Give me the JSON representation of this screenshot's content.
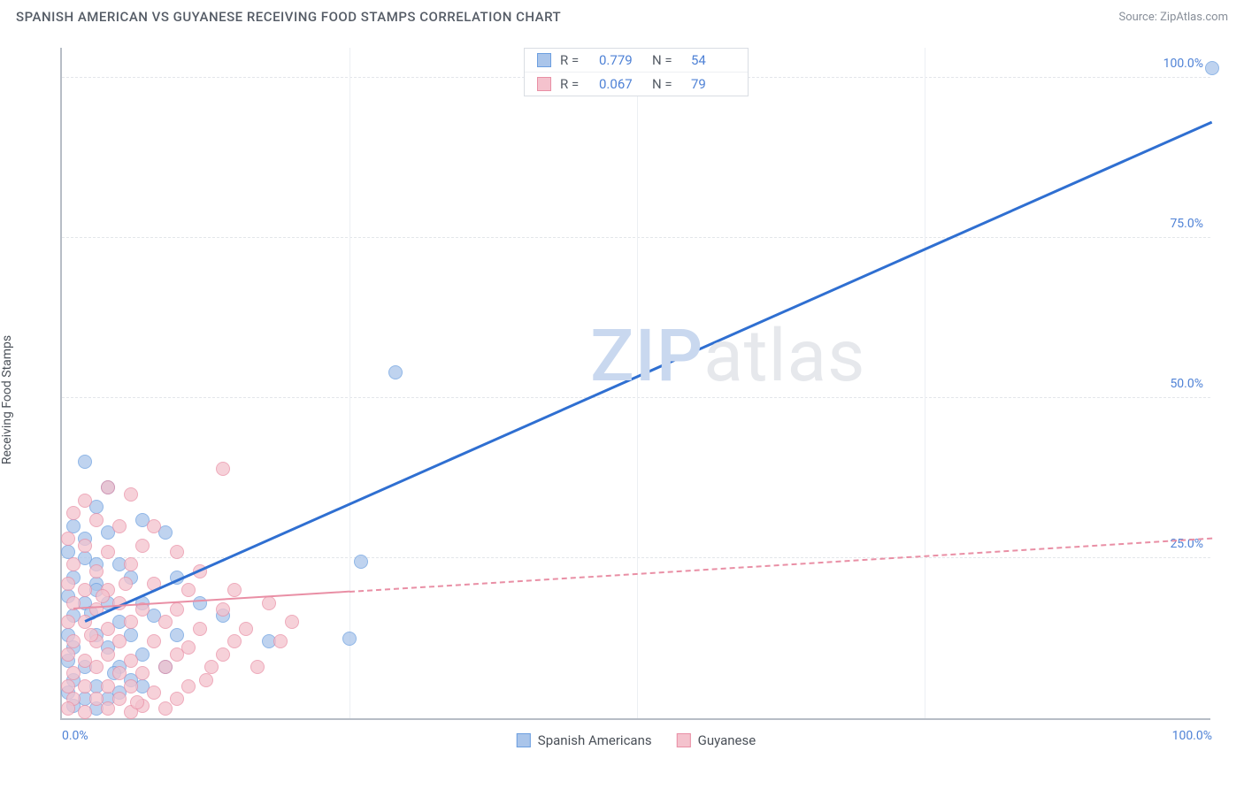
{
  "header": {
    "title": "SPANISH AMERICAN VS GUYANESE RECEIVING FOOD STAMPS CORRELATION CHART",
    "source": "Source: ZipAtlas.com"
  },
  "chart": {
    "type": "scatter",
    "ylabel": "Receiving Food Stamps",
    "background_color": "#ffffff",
    "axis_color": "#b7bdc6",
    "grid_color": "#e3e6ea",
    "tick_color": "#4f82d6",
    "label_fontsize": 14,
    "xlim": [
      0,
      100
    ],
    "ylim": [
      0,
      105
    ],
    "xticks": [
      {
        "pos": 0,
        "label": "0.0%"
      },
      {
        "pos": 100,
        "label": "100.0%"
      }
    ],
    "yticks": [
      {
        "pos": 25,
        "label": "25.0%"
      },
      {
        "pos": 50,
        "label": "50.0%"
      },
      {
        "pos": 75,
        "label": "75.0%"
      },
      {
        "pos": 100,
        "label": "100.0%"
      }
    ],
    "vgrid_positions": [
      25,
      50,
      75
    ],
    "watermark": {
      "part_a": "ZIP",
      "part_b": "atlas"
    },
    "series": [
      {
        "name": "Spanish Americans",
        "fill_color": "#aac5ea",
        "stroke_color": "#6c9fe0",
        "marker_radius": 8,
        "marker_opacity": 0.75,
        "R": "0.779",
        "N": "54",
        "points": [
          [
            100,
            101.5
          ],
          [
            29,
            54
          ],
          [
            2,
            40
          ],
          [
            4,
            36
          ],
          [
            7,
            31
          ],
          [
            3,
            33
          ],
          [
            1,
            30
          ],
          [
            2,
            28
          ],
          [
            4,
            29
          ],
          [
            9,
            29
          ],
          [
            0.5,
            26
          ],
          [
            2,
            25
          ],
          [
            5,
            24
          ],
          [
            3,
            24
          ],
          [
            26,
            24.5
          ],
          [
            1,
            22
          ],
          [
            3,
            21
          ],
          [
            6,
            22
          ],
          [
            10,
            22
          ],
          [
            0.5,
            19
          ],
          [
            2,
            18
          ],
          [
            4,
            18
          ],
          [
            7,
            18
          ],
          [
            12,
            18
          ],
          [
            3,
            20
          ],
          [
            1,
            16
          ],
          [
            5,
            15
          ],
          [
            8,
            16
          ],
          [
            14,
            16
          ],
          [
            2.5,
            16.5
          ],
          [
            0.5,
            13
          ],
          [
            3,
            13
          ],
          [
            6,
            13
          ],
          [
            10,
            13
          ],
          [
            18,
            12
          ],
          [
            25,
            12.5
          ],
          [
            1,
            11
          ],
          [
            4,
            11
          ],
          [
            7,
            10
          ],
          [
            0.5,
            9
          ],
          [
            2,
            8
          ],
          [
            5,
            8
          ],
          [
            9,
            8
          ],
          [
            1,
            6
          ],
          [
            3,
            5
          ],
          [
            6,
            6
          ],
          [
            4.5,
            7
          ],
          [
            0.5,
            4
          ],
          [
            2,
            3
          ],
          [
            4,
            3
          ],
          [
            1,
            2
          ],
          [
            3,
            1.5
          ],
          [
            5,
            4
          ],
          [
            7,
            5
          ]
        ],
        "trend": {
          "x1": 2,
          "y1": 15,
          "x2": 100,
          "y2": 93,
          "color": "#2f6fd1",
          "width": 2.5,
          "dashed_from_x": null
        }
      },
      {
        "name": "Guyanese",
        "fill_color": "#f4c2cd",
        "stroke_color": "#e98fa5",
        "marker_radius": 8,
        "marker_opacity": 0.75,
        "R": "0.067",
        "N": "79",
        "points": [
          [
            14,
            39
          ],
          [
            4,
            36
          ],
          [
            2,
            34
          ],
          [
            6,
            35
          ],
          [
            1,
            32
          ],
          [
            3,
            31
          ],
          [
            5,
            30
          ],
          [
            8,
            30
          ],
          [
            0.5,
            28
          ],
          [
            2,
            27
          ],
          [
            4,
            26
          ],
          [
            7,
            27
          ],
          [
            10,
            26
          ],
          [
            1,
            24
          ],
          [
            3,
            23
          ],
          [
            6,
            24
          ],
          [
            12,
            23
          ],
          [
            0.5,
            21
          ],
          [
            2,
            20
          ],
          [
            4,
            20
          ],
          [
            8,
            21
          ],
          [
            11,
            20
          ],
          [
            15,
            20
          ],
          [
            1,
            18
          ],
          [
            3,
            17
          ],
          [
            5,
            18
          ],
          [
            7,
            17
          ],
          [
            10,
            17
          ],
          [
            14,
            17
          ],
          [
            18,
            18
          ],
          [
            0.5,
            15
          ],
          [
            2,
            15
          ],
          [
            4,
            14
          ],
          [
            6,
            15
          ],
          [
            9,
            15
          ],
          [
            12,
            14
          ],
          [
            16,
            14
          ],
          [
            20,
            15
          ],
          [
            1,
            12
          ],
          [
            3,
            12
          ],
          [
            5,
            12
          ],
          [
            8,
            12
          ],
          [
            11,
            11
          ],
          [
            15,
            12
          ],
          [
            19,
            12
          ],
          [
            0.5,
            10
          ],
          [
            2,
            9
          ],
          [
            4,
            10
          ],
          [
            6,
            9
          ],
          [
            10,
            10
          ],
          [
            14,
            10
          ],
          [
            1,
            7
          ],
          [
            3,
            8
          ],
          [
            5,
            7
          ],
          [
            7,
            7
          ],
          [
            9,
            8
          ],
          [
            13,
            8
          ],
          [
            17,
            8
          ],
          [
            0.5,
            5
          ],
          [
            2,
            5
          ],
          [
            4,
            5
          ],
          [
            6,
            5
          ],
          [
            8,
            4
          ],
          [
            11,
            5
          ],
          [
            1,
            3
          ],
          [
            3,
            3
          ],
          [
            5,
            3
          ],
          [
            7,
            2
          ],
          [
            10,
            3
          ],
          [
            0.5,
            1.5
          ],
          [
            2,
            1
          ],
          [
            4,
            1.5
          ],
          [
            6,
            1
          ],
          [
            9,
            1.5
          ],
          [
            3.5,
            19
          ],
          [
            5.5,
            21
          ],
          [
            2.5,
            13
          ],
          [
            12.5,
            6
          ],
          [
            6.5,
            2.5
          ]
        ],
        "trend": {
          "x1": 1,
          "y1": 17,
          "x2": 100,
          "y2": 28,
          "color": "#e98fa5",
          "width": 2,
          "dashed_from_x": 25
        }
      }
    ],
    "legend_top": {
      "border_color": "#d9dde3",
      "R_label": "R =",
      "N_label": "N ="
    }
  }
}
